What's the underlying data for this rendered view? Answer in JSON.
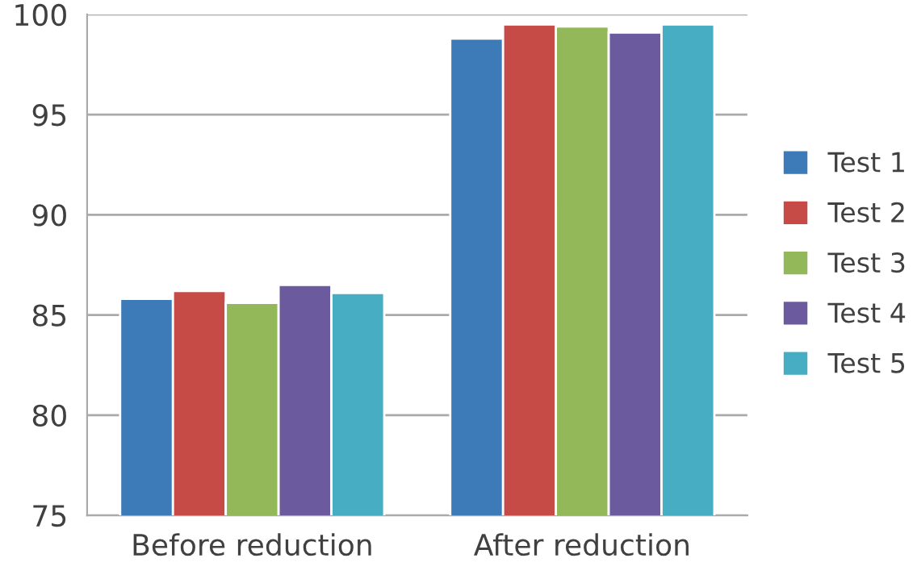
{
  "chart_data": {
    "type": "bar",
    "categories": [
      "Before reduction",
      "After reduction"
    ],
    "series": [
      {
        "name": "Test 1",
        "color": "#3d7ab8",
        "values": [
          85.8,
          98.8
        ]
      },
      {
        "name": "Test 2",
        "color": "#c64b47",
        "values": [
          86.2,
          99.5
        ]
      },
      {
        "name": "Test 3",
        "color": "#93b85a",
        "values": [
          85.6,
          99.4
        ]
      },
      {
        "name": "Test 4",
        "color": "#6c5a9e",
        "values": [
          86.5,
          99.1
        ]
      },
      {
        "name": "Test 5",
        "color": "#47adc3",
        "values": [
          86.1,
          99.5
        ]
      }
    ],
    "ylim": [
      75,
      100
    ],
    "yticks": [
      75,
      80,
      85,
      90,
      95,
      100
    ],
    "grid": "y",
    "legend": "right"
  }
}
